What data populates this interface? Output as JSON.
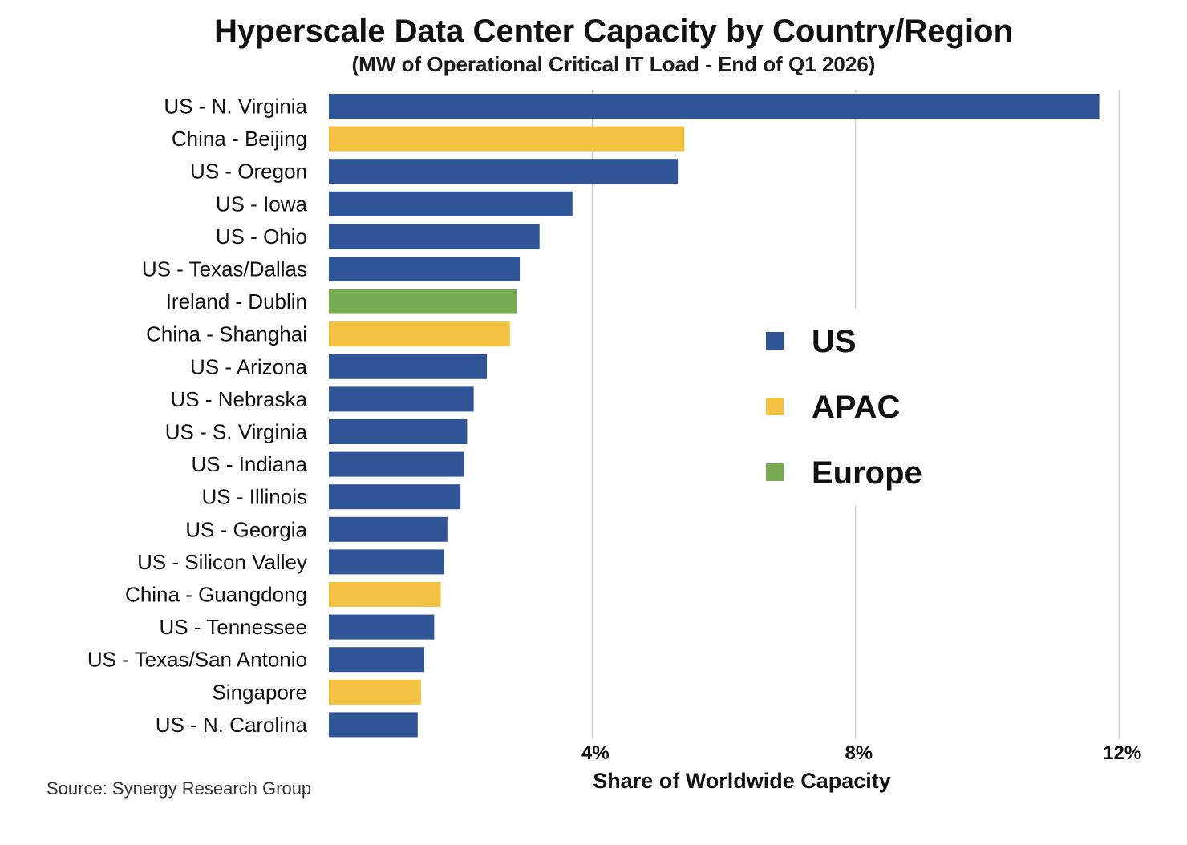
{
  "chart_data": {
    "type": "bar",
    "orientation": "horizontal",
    "title": "Hyperscale Data Center Capacity by Country/Region",
    "subtitle": "(MW of Operational Critical IT Load - End of Q1 2026)",
    "xlabel": "Share of Worldwide Capacity",
    "ylabel": "",
    "xlim": [
      0,
      12
    ],
    "x_ticks": [
      4,
      8,
      12
    ],
    "x_tick_labels": [
      "4%",
      "8%",
      "12%"
    ],
    "grid": "vertical",
    "legend_placement": "right",
    "legend": [
      {
        "name": "US",
        "color": "#2F5597"
      },
      {
        "name": "APAC",
        "color": "#F4C242"
      },
      {
        "name": "Europe",
        "color": "#77AB52"
      }
    ],
    "categories": [
      "US - N. Virginia",
      "China - Beijing",
      "US - Oregon",
      "US - Iowa",
      "US - Ohio",
      "US - Texas/Dallas",
      "Ireland - Dublin",
      "China - Shanghai",
      "US - Arizona",
      "US - Nebraska",
      "US - S. Virginia",
      "US - Indiana",
      "US - Illinois",
      "US - Georgia",
      "US - Silicon Valley",
      "China - Guangdong",
      "US - Tennessee",
      "US - Texas/San Antonio",
      "Singapore",
      "US - N. Carolina"
    ],
    "values": [
      11.7,
      5.4,
      5.3,
      3.7,
      3.2,
      2.9,
      2.85,
      2.75,
      2.4,
      2.2,
      2.1,
      2.05,
      2.0,
      1.8,
      1.75,
      1.7,
      1.6,
      1.45,
      1.4,
      1.35
    ],
    "groups": [
      "US",
      "APAC",
      "US",
      "US",
      "US",
      "US",
      "Europe",
      "APAC",
      "US",
      "US",
      "US",
      "US",
      "US",
      "US",
      "US",
      "APAC",
      "US",
      "US",
      "APAC",
      "US"
    ]
  },
  "source": "Source: Synergy Research Group"
}
